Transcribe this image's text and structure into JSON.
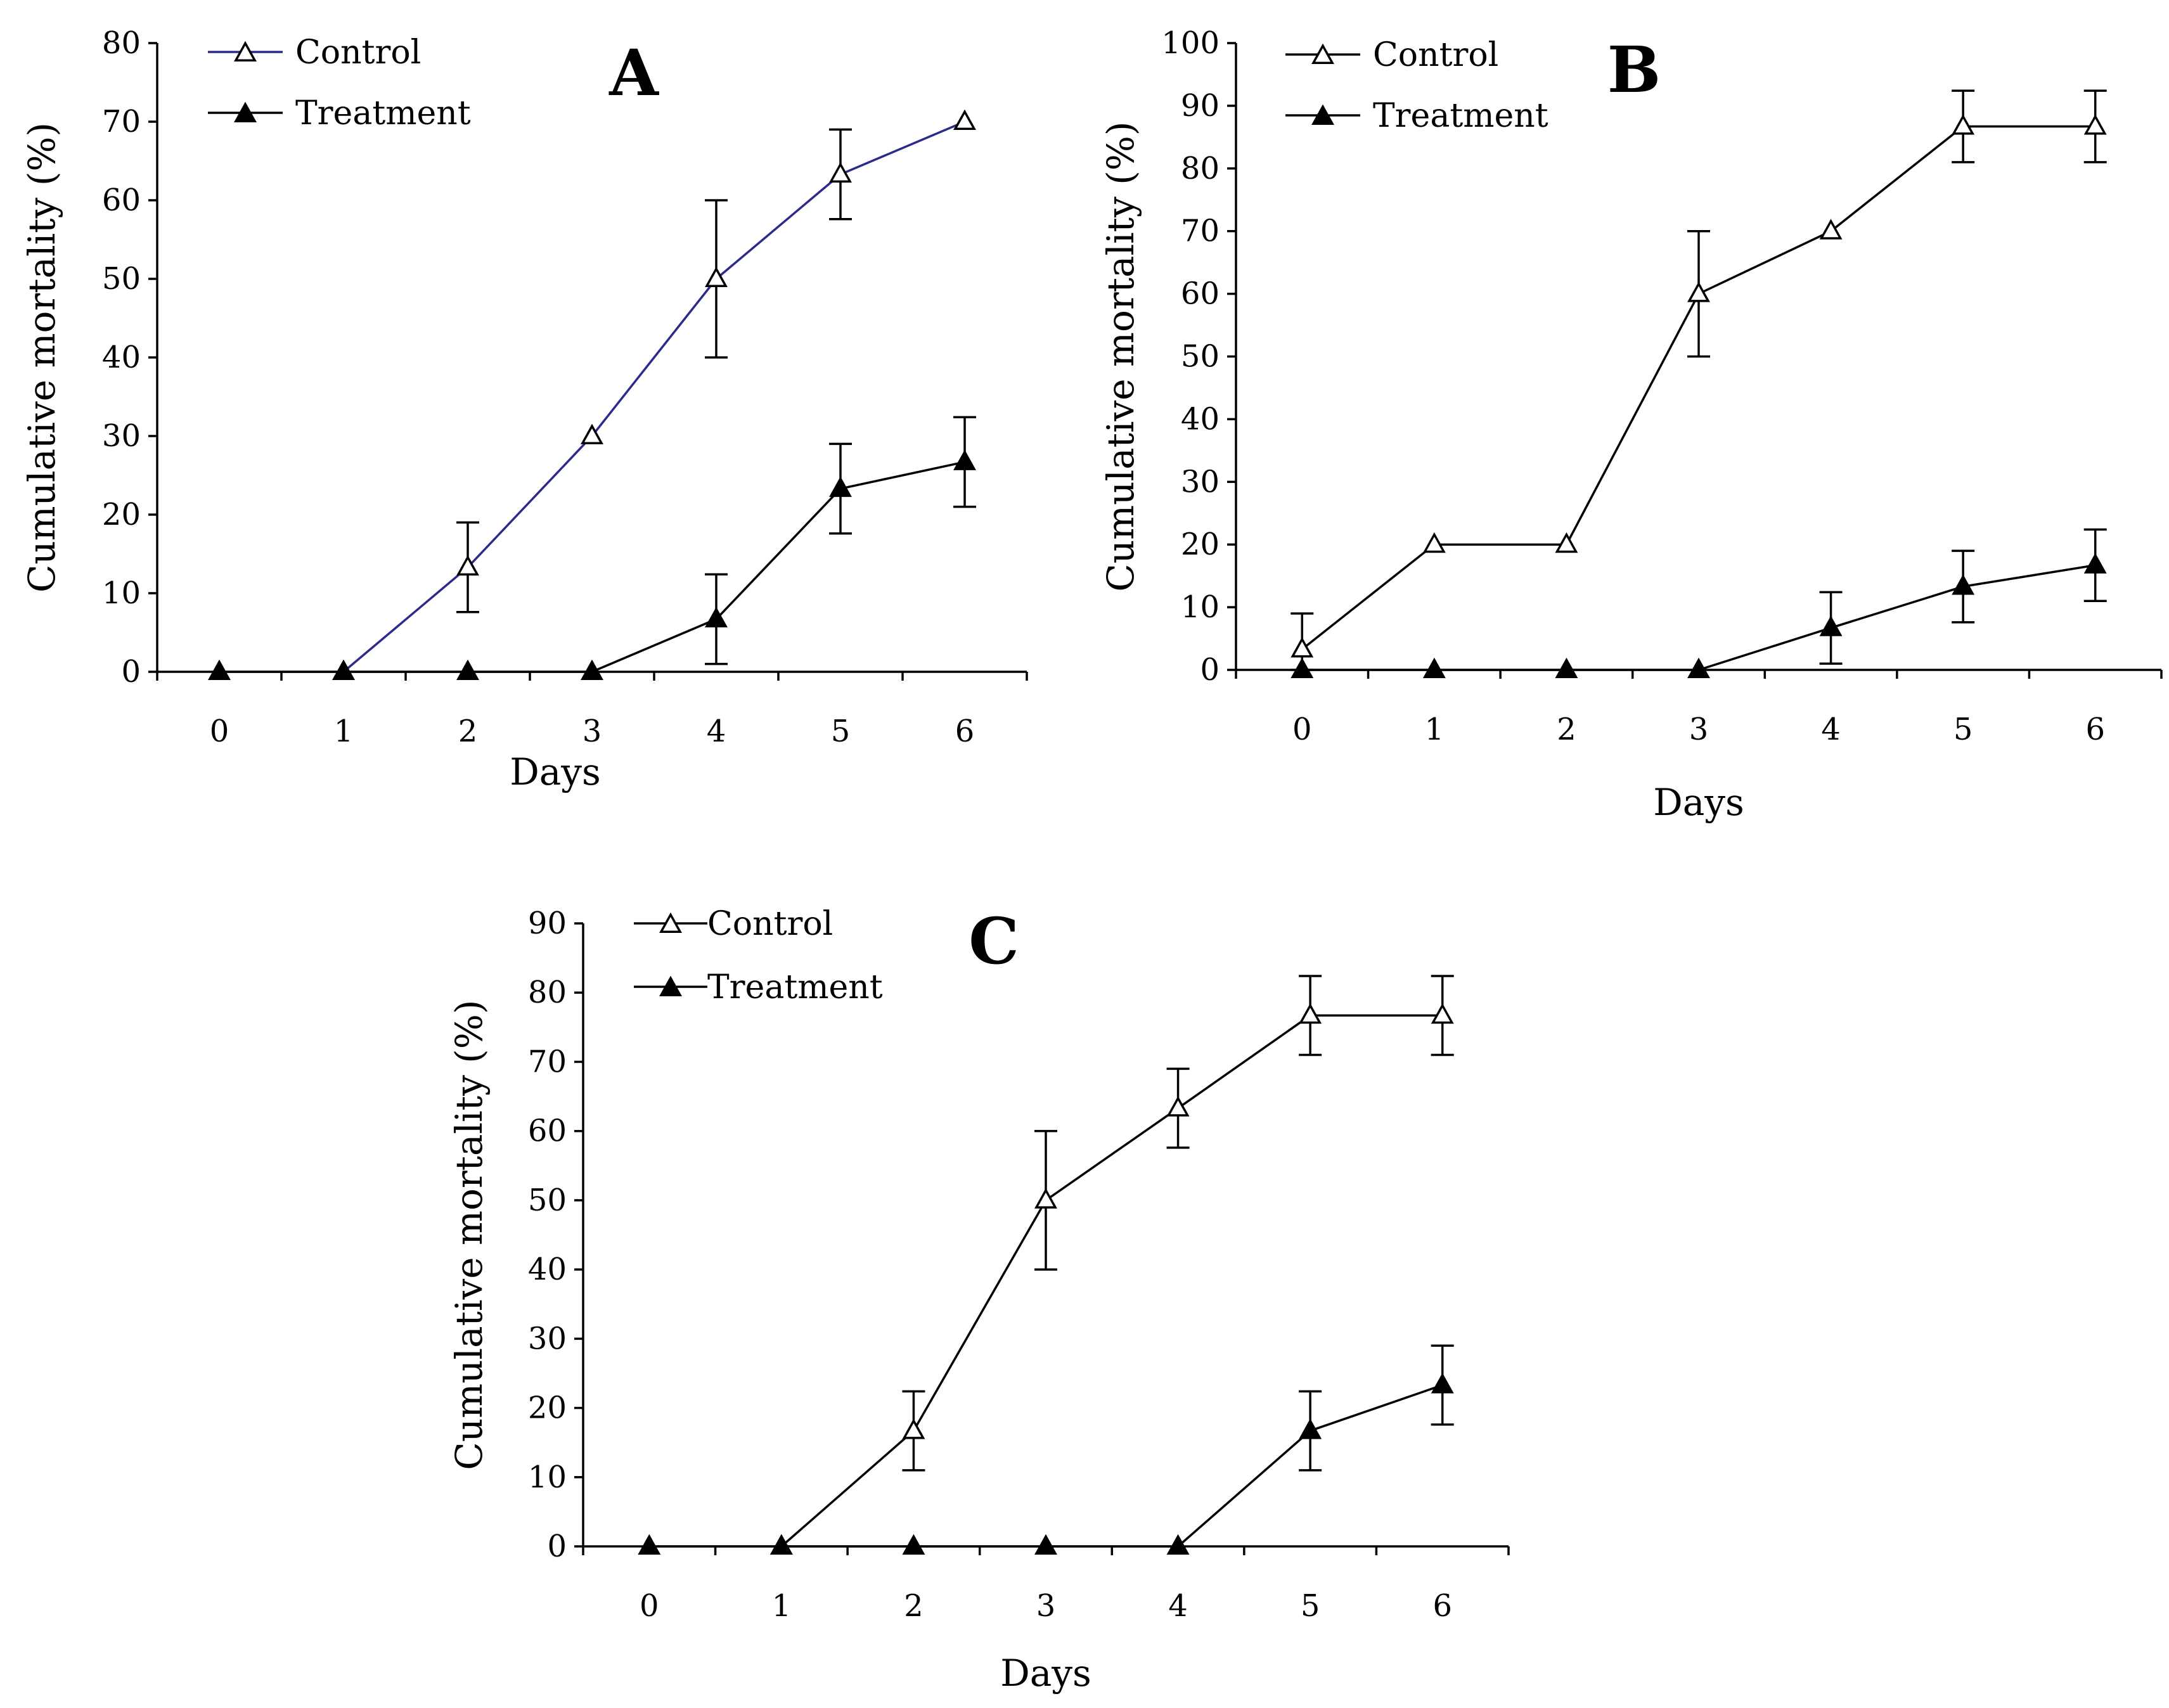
{
  "chart_data": [
    {
      "type": "line",
      "panel_label": "A",
      "xlabel": "Days",
      "ylabel": "Cumulative mortality (%)",
      "x": [
        0,
        1,
        2,
        3,
        4,
        5,
        6
      ],
      "xlim": [
        -0.5,
        6.5
      ],
      "ylim": [
        0,
        80
      ],
      "y_ticks": [
        0,
        10,
        20,
        30,
        40,
        50,
        60,
        70,
        80
      ],
      "legend_position": "top-left",
      "series": [
        {
          "name": "Control",
          "marker": "open-triangle",
          "color": "#2b2b8c",
          "x": [
            1,
            2,
            3,
            4,
            5,
            6
          ],
          "values": [
            0,
            13.3,
            30,
            50,
            63.3,
            70
          ],
          "errors": [
            0,
            5.7,
            0,
            10,
            5.7,
            0
          ]
        },
        {
          "name": "Treatment",
          "marker": "filled-triangle",
          "color": "#000000",
          "x": [
            0,
            1,
            2,
            3,
            4,
            5,
            6
          ],
          "values": [
            0,
            0,
            0,
            0,
            6.7,
            23.3,
            26.7
          ],
          "errors": [
            0,
            0,
            0,
            0,
            5.7,
            5.7,
            5.7
          ]
        }
      ]
    },
    {
      "type": "line",
      "panel_label": "B",
      "xlabel": "Days",
      "ylabel": "Cumulative mortality (%)",
      "x": [
        0,
        1,
        2,
        3,
        4,
        5,
        6
      ],
      "xlim": [
        -0.5,
        6.5
      ],
      "ylim": [
        0,
        100
      ],
      "y_ticks": [
        0,
        10,
        20,
        30,
        40,
        50,
        60,
        70,
        80,
        90,
        100
      ],
      "legend_position": "top-left",
      "series": [
        {
          "name": "Control",
          "marker": "open-triangle",
          "color": "#000000",
          "x": [
            0,
            1,
            2,
            3,
            4,
            5,
            6
          ],
          "values": [
            3.3,
            20,
            20,
            60,
            70,
            86.7,
            86.7
          ],
          "errors": [
            5.7,
            0,
            0,
            10,
            0,
            5.7,
            5.7
          ]
        },
        {
          "name": "Treatment",
          "marker": "filled-triangle",
          "color": "#000000",
          "x": [
            0,
            1,
            2,
            3,
            4,
            5,
            6
          ],
          "values": [
            0,
            0,
            0,
            0,
            6.7,
            13.3,
            16.7
          ],
          "errors": [
            0,
            0,
            0,
            0,
            5.7,
            5.7,
            5.7
          ]
        }
      ]
    },
    {
      "type": "line",
      "panel_label": "C",
      "xlabel": "Days",
      "ylabel": "Cumulative mortality (%)",
      "x": [
        0,
        1,
        2,
        3,
        4,
        5,
        6
      ],
      "xlim": [
        -0.5,
        6.5
      ],
      "ylim": [
        0,
        90
      ],
      "y_ticks": [
        0,
        10,
        20,
        30,
        40,
        50,
        60,
        70,
        80,
        90
      ],
      "legend_position": "top-left",
      "series": [
        {
          "name": "Control",
          "marker": "open-triangle",
          "color": "#000000",
          "x": [
            1,
            2,
            3,
            4,
            5,
            6
          ],
          "values": [
            0,
            16.7,
            50,
            63.3,
            76.7,
            76.7
          ],
          "errors": [
            0,
            5.7,
            10,
            5.7,
            5.7,
            5.7
          ]
        },
        {
          "name": "Treatment",
          "marker": "filled-triangle",
          "color": "#000000",
          "x": [
            0,
            1,
            2,
            3,
            4,
            5,
            6
          ],
          "values": [
            0,
            0,
            0,
            0,
            0,
            16.7,
            23.3
          ],
          "errors": [
            0,
            0,
            0,
            0,
            0,
            5.7,
            5.7
          ]
        }
      ]
    }
  ]
}
